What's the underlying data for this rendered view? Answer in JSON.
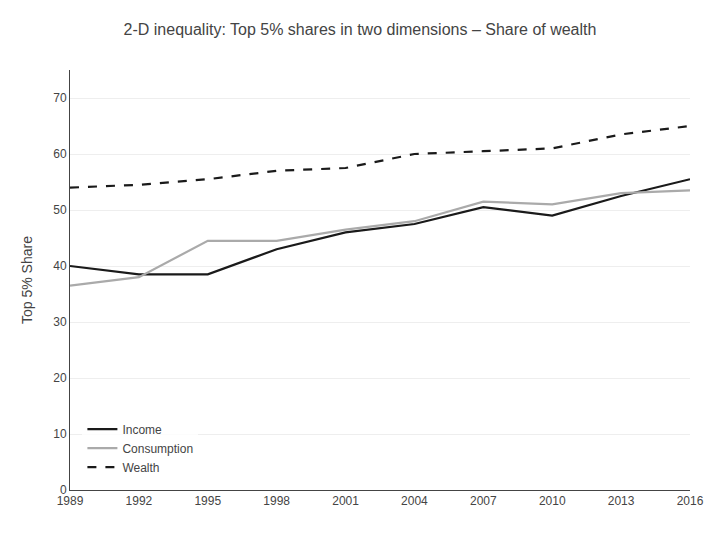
{
  "chart_data": {
    "type": "line",
    "title": "2-D inequality: Top 5% shares in two dimensions – Share of wealth",
    "y_label": "Top 5% Share",
    "x": [
      1989,
      1992,
      1995,
      1998,
      2001,
      2004,
      2007,
      2010,
      2013,
      2016
    ],
    "series": [
      {
        "name": "Income",
        "color": "#1a1a1a",
        "line_style": "solid",
        "values": [
          40.0,
          38.5,
          38.5,
          43.0,
          46.0,
          47.5,
          50.5,
          49.0,
          52.5,
          55.5
        ]
      },
      {
        "name": "Consumption",
        "color": "#aaaaaa",
        "line_style": "solid",
        "values": [
          36.5,
          38.0,
          44.5,
          44.5,
          46.5,
          48.0,
          51.5,
          51.0,
          53.0,
          53.5
        ]
      },
      {
        "name": "Wealth",
        "color": "#1a1a1a",
        "line_style": "dashed",
        "values": [
          54.0,
          54.5,
          55.5,
          57.0,
          57.5,
          60.0,
          60.5,
          61.0,
          63.5,
          65.0
        ]
      }
    ],
    "xlim": [
      1989,
      2016
    ],
    "xticks": [
      1989,
      1992,
      1995,
      1998,
      2001,
      2004,
      2007,
      2010,
      2013,
      2016
    ],
    "ylim": [
      0,
      75
    ],
    "yticks": [
      0,
      10,
      20,
      30,
      40,
      50,
      60,
      70
    ],
    "grid": "y",
    "legend": "lower left"
  }
}
